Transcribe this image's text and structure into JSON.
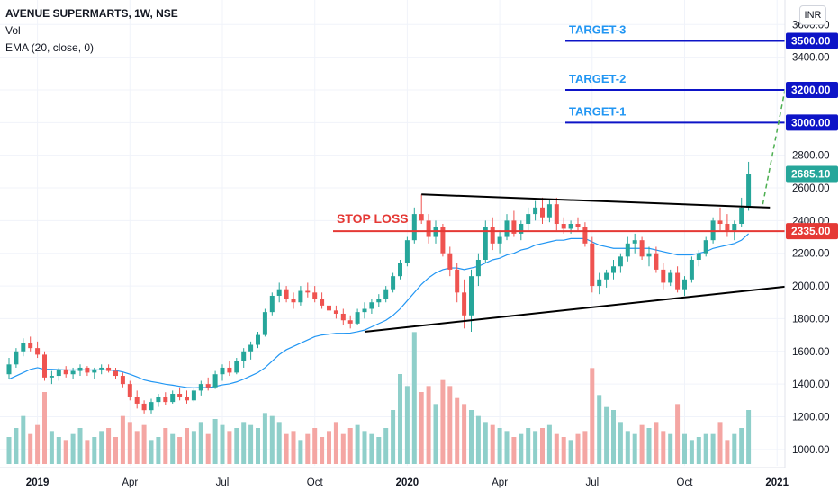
{
  "header": {
    "title": "AVENUE SUPERMARTS, 1W, NSE",
    "vol_label": "Vol",
    "ema_label": "EMA (20, close, 0)",
    "currency": "INR"
  },
  "chart_data": {
    "type": "candlestick",
    "ylim": [
      900,
      3750
    ],
    "y_ticks": [
      1000,
      1200,
      1400,
      1600,
      1800,
      2000,
      2200,
      2400,
      2600,
      2800,
      3400,
      3600
    ],
    "y_tick_labels": [
      "1000.00",
      "1200.00",
      "1400.00",
      "1600.00",
      "1800.00",
      "2000.00",
      "2200.00",
      "2400.00",
      "2600.00",
      "2800.00",
      "3400.00",
      "3600.00"
    ],
    "top_partial_label": "3",
    "x_ticks": [
      {
        "label": "2019",
        "bold": true,
        "week": 4
      },
      {
        "label": "Apr",
        "bold": false,
        "week": 17
      },
      {
        "label": "Jul",
        "bold": false,
        "week": 30
      },
      {
        "label": "Oct",
        "bold": false,
        "week": 43
      },
      {
        "label": "2020",
        "bold": true,
        "week": 56
      },
      {
        "label": "Apr",
        "bold": false,
        "week": 69
      },
      {
        "label": "Jul",
        "bold": false,
        "week": 82
      },
      {
        "label": "Oct",
        "bold": false,
        "week": 95
      },
      {
        "label": "2021",
        "bold": true,
        "week": 108
      }
    ],
    "colors": {
      "up": "#26a69a",
      "down": "#ef5350",
      "vol_up": "#8fcfca",
      "vol_down": "#f4a6a3",
      "ema": "#2196f3",
      "price_line": "#26a69a",
      "target": "#0d14c7",
      "stop": "#e53935",
      "trend": "#000000",
      "projection": "#4caf50"
    },
    "candles": [
      [
        1460,
        1560,
        1430,
        1520
      ],
      [
        1520,
        1620,
        1500,
        1600
      ],
      [
        1600,
        1680,
        1570,
        1650
      ],
      [
        1650,
        1690,
        1600,
        1620
      ],
      [
        1620,
        1660,
        1560,
        1580
      ],
      [
        1580,
        1600,
        1420,
        1440
      ],
      [
        1440,
        1480,
        1400,
        1450
      ],
      [
        1450,
        1500,
        1420,
        1490
      ],
      [
        1490,
        1510,
        1440,
        1460
      ],
      [
        1460,
        1500,
        1430,
        1480
      ],
      [
        1480,
        1520,
        1450,
        1500
      ],
      [
        1500,
        1510,
        1450,
        1470
      ],
      [
        1470,
        1500,
        1430,
        1490
      ],
      [
        1490,
        1520,
        1460,
        1500
      ],
      [
        1500,
        1520,
        1470,
        1480
      ],
      [
        1480,
        1500,
        1430,
        1450
      ],
      [
        1450,
        1470,
        1380,
        1400
      ],
      [
        1400,
        1420,
        1300,
        1320
      ],
      [
        1320,
        1360,
        1250,
        1280
      ],
      [
        1280,
        1300,
        1220,
        1240
      ],
      [
        1240,
        1310,
        1220,
        1290
      ],
      [
        1290,
        1340,
        1260,
        1320
      ],
      [
        1320,
        1350,
        1270,
        1290
      ],
      [
        1290,
        1360,
        1280,
        1340
      ],
      [
        1340,
        1380,
        1300,
        1320
      ],
      [
        1320,
        1360,
        1280,
        1300
      ],
      [
        1300,
        1380,
        1290,
        1360
      ],
      [
        1360,
        1420,
        1330,
        1400
      ],
      [
        1400,
        1440,
        1360,
        1380
      ],
      [
        1380,
        1480,
        1370,
        1460
      ],
      [
        1460,
        1520,
        1420,
        1500
      ],
      [
        1500,
        1540,
        1450,
        1470
      ],
      [
        1470,
        1560,
        1460,
        1540
      ],
      [
        1540,
        1620,
        1500,
        1600
      ],
      [
        1600,
        1660,
        1550,
        1640
      ],
      [
        1640,
        1720,
        1620,
        1700
      ],
      [
        1700,
        1860,
        1690,
        1840
      ],
      [
        1840,
        1960,
        1820,
        1940
      ],
      [
        1940,
        2020,
        1900,
        1980
      ],
      [
        1980,
        2000,
        1900,
        1920
      ],
      [
        1920,
        1960,
        1860,
        1900
      ],
      [
        1900,
        2000,
        1880,
        1970
      ],
      [
        1970,
        2020,
        1930,
        1960
      ],
      [
        1960,
        2000,
        1900,
        1920
      ],
      [
        1920,
        1960,
        1860,
        1880
      ],
      [
        1880,
        1900,
        1820,
        1850
      ],
      [
        1850,
        1880,
        1800,
        1830
      ],
      [
        1830,
        1860,
        1760,
        1790
      ],
      [
        1790,
        1820,
        1740,
        1770
      ],
      [
        1770,
        1860,
        1760,
        1840
      ],
      [
        1840,
        1900,
        1800,
        1860
      ],
      [
        1860,
        1920,
        1830,
        1900
      ],
      [
        1900,
        1950,
        1870,
        1920
      ],
      [
        1920,
        2000,
        1900,
        1980
      ],
      [
        1980,
        2080,
        1960,
        2060
      ],
      [
        2060,
        2160,
        2040,
        2140
      ],
      [
        2140,
        2300,
        2120,
        2280
      ],
      [
        2280,
        2480,
        2260,
        2440
      ],
      [
        2440,
        2560,
        2380,
        2400
      ],
      [
        2400,
        2440,
        2260,
        2300
      ],
      [
        2300,
        2400,
        2260,
        2360
      ],
      [
        2360,
        2380,
        2180,
        2200
      ],
      [
        2200,
        2240,
        2060,
        2100
      ],
      [
        2100,
        2140,
        1900,
        1960
      ],
      [
        1960,
        2040,
        1740,
        1820
      ],
      [
        1820,
        2100,
        1720,
        2060
      ],
      [
        2060,
        2200,
        2000,
        2160
      ],
      [
        2160,
        2400,
        2140,
        2360
      ],
      [
        2360,
        2420,
        2220,
        2260
      ],
      [
        2260,
        2340,
        2200,
        2300
      ],
      [
        2300,
        2440,
        2280,
        2400
      ],
      [
        2400,
        2460,
        2300,
        2320
      ],
      [
        2320,
        2400,
        2280,
        2380
      ],
      [
        2380,
        2480,
        2340,
        2440
      ],
      [
        2440,
        2520,
        2400,
        2480
      ],
      [
        2480,
        2540,
        2380,
        2420
      ],
      [
        2420,
        2530,
        2390,
        2500
      ],
      [
        2500,
        2540,
        2340,
        2380
      ],
      [
        2380,
        2420,
        2320,
        2350
      ],
      [
        2350,
        2400,
        2320,
        2380
      ],
      [
        2380,
        2420,
        2340,
        2360
      ],
      [
        2360,
        2390,
        2240,
        2260
      ],
      [
        2260,
        2300,
        1960,
        2000
      ],
      [
        2000,
        2080,
        1950,
        2040
      ],
      [
        2040,
        2100,
        1990,
        2080
      ],
      [
        2080,
        2160,
        2040,
        2120
      ],
      [
        2120,
        2200,
        2080,
        2180
      ],
      [
        2180,
        2300,
        2150,
        2260
      ],
      [
        2260,
        2320,
        2200,
        2280
      ],
      [
        2280,
        2300,
        2160,
        2180
      ],
      [
        2180,
        2240,
        2120,
        2200
      ],
      [
        2200,
        2240,
        2080,
        2100
      ],
      [
        2100,
        2140,
        1980,
        2020
      ],
      [
        2020,
        2100,
        2000,
        2080
      ],
      [
        2080,
        2120,
        1960,
        1980
      ],
      [
        1980,
        2060,
        1940,
        2040
      ],
      [
        2040,
        2180,
        2020,
        2160
      ],
      [
        2160,
        2220,
        2120,
        2200
      ],
      [
        2200,
        2300,
        2180,
        2280
      ],
      [
        2280,
        2420,
        2260,
        2400
      ],
      [
        2400,
        2480,
        2340,
        2380
      ],
      [
        2380,
        2440,
        2300,
        2340
      ],
      [
        2340,
        2400,
        2280,
        2380
      ],
      [
        2380,
        2540,
        2360,
        2480
      ],
      [
        2480,
        2760,
        2460,
        2685.1
      ]
    ],
    "volumes": [
      45,
      60,
      80,
      50,
      65,
      120,
      55,
      45,
      40,
      50,
      60,
      40,
      45,
      55,
      60,
      45,
      80,
      70,
      55,
      65,
      40,
      45,
      60,
      50,
      45,
      60,
      55,
      70,
      50,
      75,
      65,
      55,
      60,
      70,
      65,
      60,
      85,
      80,
      70,
      50,
      55,
      40,
      50,
      60,
      45,
      55,
      70,
      50,
      60,
      65,
      55,
      50,
      45,
      60,
      90,
      150,
      130,
      220,
      120,
      130,
      100,
      140,
      130,
      110,
      100,
      90,
      80,
      70,
      65,
      60,
      55,
      45,
      50,
      60,
      55,
      60,
      65,
      50,
      45,
      40,
      50,
      55,
      160,
      115,
      95,
      90,
      70,
      55,
      50,
      65,
      60,
      70,
      55,
      50,
      100,
      50,
      40,
      45,
      50,
      50,
      70,
      40,
      50,
      60,
      90
    ],
    "ema": [
      1430,
      1450,
      1470,
      1490,
      1500,
      1490,
      1490,
      1488,
      1486,
      1486,
      1487,
      1486,
      1486,
      1487,
      1486,
      1483,
      1474,
      1460,
      1444,
      1425,
      1415,
      1408,
      1399,
      1393,
      1386,
      1379,
      1377,
      1379,
      1378,
      1385,
      1395,
      1401,
      1413,
      1430,
      1450,
      1470,
      1500,
      1540,
      1580,
      1610,
      1630,
      1650,
      1670,
      1690,
      1700,
      1705,
      1710,
      1710,
      1712,
      1720,
      1730,
      1750,
      1770,
      1790,
      1820,
      1860,
      1910,
      1960,
      2010,
      2050,
      2080,
      2100,
      2110,
      2110,
      2100,
      2110,
      2120,
      2140,
      2160,
      2170,
      2190,
      2200,
      2220,
      2230,
      2250,
      2260,
      2270,
      2280,
      2280,
      2290,
      2290,
      2290,
      2270,
      2250,
      2240,
      2230,
      2230,
      2230,
      2230,
      2230,
      2230,
      2220,
      2210,
      2200,
      2190,
      2190,
      2190,
      2200,
      2210,
      2230,
      2240,
      2250,
      2260,
      2280,
      2320
    ],
    "volume_scale_max": 240,
    "current_price": "2685.10",
    "stop_loss": {
      "label": "STOP LOSS",
      "value": 2335,
      "tag": "2335.00"
    },
    "targets": [
      {
        "label": "TARGET-1",
        "value": 3000,
        "tag": "3000.00"
      },
      {
        "label": "TARGET-2",
        "value": 3200,
        "tag": "3200.00"
      },
      {
        "label": "TARGET-3",
        "value": 3500,
        "tag": "3500.00"
      }
    ],
    "upper_trendline": {
      "from": [
        58,
        2560
      ],
      "to": [
        107,
        2480
      ]
    },
    "lower_trendline": {
      "from": [
        50,
        1720
      ],
      "to": [
        110,
        2000
      ]
    },
    "projection": {
      "from": [
        106,
        2500
      ],
      "to": [
        110,
        3400
      ]
    },
    "grid": true
  }
}
